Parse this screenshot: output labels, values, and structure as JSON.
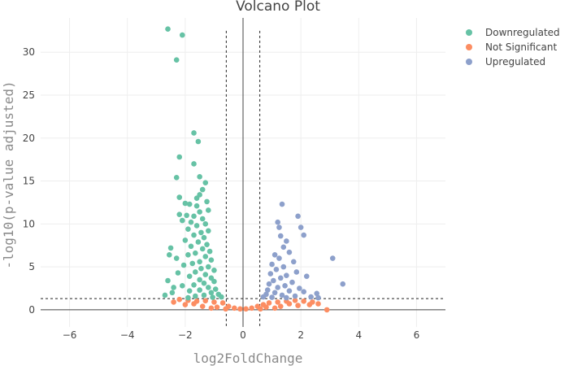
{
  "chart_data": {
    "type": "scatter",
    "title": "Volcano Plot",
    "xlabel": "log2FoldChange",
    "ylabel": "-log10(p-value adjusted)",
    "xlim": [
      -7,
      7
    ],
    "ylim": [
      -2,
      34
    ],
    "xticks": [
      -6,
      -4,
      -2,
      0,
      2,
      4,
      6
    ],
    "yticks": [
      0,
      5,
      10,
      15,
      20,
      25,
      30
    ],
    "xtick_labels": [
      "−6",
      "−4",
      "−2",
      "0",
      "2",
      "4",
      "6"
    ],
    "ytick_labels": [
      "0",
      "5",
      "10",
      "15",
      "20",
      "25",
      "30"
    ],
    "grid": true,
    "legend_position": "top-right",
    "thresholds": {
      "log2fc": [
        -0.58,
        0.58
      ],
      "neg_log10_padj": 1.3
    },
    "series": [
      {
        "name": "Downregulated",
        "color": "#66c2a5",
        "points": [
          [
            -2.6,
            32.7
          ],
          [
            -2.1,
            32.0
          ],
          [
            -2.3,
            29.1
          ],
          [
            -1.7,
            20.6
          ],
          [
            -1.55,
            19.6
          ],
          [
            -2.2,
            17.8
          ],
          [
            -1.7,
            17.0
          ],
          [
            -1.5,
            15.5
          ],
          [
            -2.3,
            15.4
          ],
          [
            -1.3,
            14.8
          ],
          [
            -1.4,
            14.0
          ],
          [
            -1.5,
            13.4
          ],
          [
            -2.2,
            13.1
          ],
          [
            -1.6,
            13.0
          ],
          [
            -1.25,
            12.6
          ],
          [
            -2.0,
            12.4
          ],
          [
            -1.85,
            12.3
          ],
          [
            -1.6,
            12.1
          ],
          [
            -1.2,
            11.6
          ],
          [
            -1.5,
            11.4
          ],
          [
            -2.2,
            11.1
          ],
          [
            -1.95,
            11.0
          ],
          [
            -1.7,
            10.9
          ],
          [
            -1.4,
            10.6
          ],
          [
            -2.1,
            10.4
          ],
          [
            -1.8,
            10.2
          ],
          [
            -1.3,
            10.0
          ],
          [
            -1.6,
            9.8
          ],
          [
            -1.9,
            9.4
          ],
          [
            -1.2,
            9.2
          ],
          [
            -1.45,
            9.0
          ],
          [
            -1.7,
            8.7
          ],
          [
            -1.35,
            8.4
          ],
          [
            -2.0,
            8.1
          ],
          [
            -1.55,
            7.9
          ],
          [
            -1.25,
            7.6
          ],
          [
            -1.8,
            7.4
          ],
          [
            -2.5,
            7.2
          ],
          [
            -1.4,
            7.1
          ],
          [
            -1.15,
            6.8
          ],
          [
            -1.65,
            6.6
          ],
          [
            -1.9,
            6.4
          ],
          [
            -2.55,
            6.4
          ],
          [
            -1.3,
            6.2
          ],
          [
            -2.3,
            6.0
          ],
          [
            -1.1,
            5.8
          ],
          [
            -1.5,
            5.6
          ],
          [
            -1.75,
            5.4
          ],
          [
            -2.05,
            5.2
          ],
          [
            -1.2,
            5.0
          ],
          [
            -1.45,
            4.8
          ],
          [
            -1.0,
            4.6
          ],
          [
            -1.65,
            4.4
          ],
          [
            -2.25,
            4.3
          ],
          [
            -1.3,
            4.1
          ],
          [
            -1.85,
            3.9
          ],
          [
            -1.1,
            3.7
          ],
          [
            -1.5,
            3.5
          ],
          [
            -2.6,
            3.4
          ],
          [
            -1.0,
            3.3
          ],
          [
            -1.35,
            3.1
          ],
          [
            -1.7,
            2.9
          ],
          [
            -2.1,
            2.8
          ],
          [
            -1.2,
            2.6
          ],
          [
            -2.4,
            2.6
          ],
          [
            -0.95,
            2.4
          ],
          [
            -1.5,
            2.3
          ],
          [
            -1.85,
            2.2
          ],
          [
            -2.45,
            2.0
          ],
          [
            -1.1,
            2.0
          ],
          [
            -0.85,
            1.8
          ],
          [
            -1.35,
            1.7
          ],
          [
            -2.7,
            1.7
          ],
          [
            -1.65,
            1.6
          ],
          [
            -0.75,
            1.5
          ],
          [
            -1.05,
            1.45
          ],
          [
            -1.9,
            1.4
          ]
        ]
      },
      {
        "name": "Not Significant",
        "color": "#fc8d62",
        "points": [
          [
            -2.2,
            1.2
          ],
          [
            -1.9,
            1.1
          ],
          [
            -1.6,
            1.0
          ],
          [
            -1.3,
            1.05
          ],
          [
            -1.0,
            0.9
          ],
          [
            -0.7,
            0.8
          ],
          [
            -0.5,
            0.4
          ],
          [
            -0.3,
            0.2
          ],
          [
            -0.1,
            0.1
          ],
          [
            0.1,
            0.1
          ],
          [
            0.3,
            0.2
          ],
          [
            0.5,
            0.4
          ],
          [
            0.7,
            0.6
          ],
          [
            0.9,
            0.8
          ],
          [
            1.2,
            0.9
          ],
          [
            1.5,
            1.0
          ],
          [
            1.8,
            1.1
          ],
          [
            2.1,
            1.0
          ],
          [
            2.4,
            0.9
          ],
          [
            2.6,
            0.7
          ],
          [
            2.9,
            0.0
          ],
          [
            -2.0,
            0.6
          ],
          [
            -1.4,
            0.4
          ],
          [
            -0.9,
            0.3
          ],
          [
            0.8,
            0.3
          ],
          [
            1.3,
            0.4
          ],
          [
            1.9,
            0.5
          ],
          [
            -2.4,
            0.9
          ],
          [
            -1.1,
            0.2
          ],
          [
            1.1,
            0.2
          ],
          [
            2.3,
            0.6
          ],
          [
            -0.6,
            0.1
          ],
          [
            0.6,
            0.1
          ],
          [
            -1.7,
            0.7
          ],
          [
            1.6,
            0.7
          ]
        ]
      },
      {
        "name": "Upregulated",
        "color": "#8da0cb",
        "points": [
          [
            1.35,
            12.3
          ],
          [
            1.9,
            10.9
          ],
          [
            1.2,
            10.2
          ],
          [
            1.25,
            9.6
          ],
          [
            2.0,
            9.6
          ],
          [
            2.1,
            8.7
          ],
          [
            1.3,
            8.6
          ],
          [
            1.5,
            8.0
          ],
          [
            1.4,
            7.3
          ],
          [
            1.6,
            6.7
          ],
          [
            1.1,
            6.4
          ],
          [
            1.25,
            6.0
          ],
          [
            3.1,
            6.0
          ],
          [
            1.75,
            5.6
          ],
          [
            1.0,
            5.3
          ],
          [
            1.4,
            5.0
          ],
          [
            1.15,
            4.7
          ],
          [
            1.85,
            4.4
          ],
          [
            0.95,
            4.2
          ],
          [
            1.5,
            4.0
          ],
          [
            2.2,
            3.9
          ],
          [
            1.3,
            3.7
          ],
          [
            1.05,
            3.4
          ],
          [
            1.7,
            3.2
          ],
          [
            3.45,
            3.0
          ],
          [
            0.9,
            3.0
          ],
          [
            1.45,
            2.8
          ],
          [
            1.2,
            2.6
          ],
          [
            1.95,
            2.5
          ],
          [
            0.85,
            2.3
          ],
          [
            1.6,
            2.2
          ],
          [
            2.1,
            2.1
          ],
          [
            1.1,
            2.0
          ],
          [
            2.55,
            1.9
          ],
          [
            0.8,
            1.8
          ],
          [
            1.35,
            1.7
          ],
          [
            1.8,
            1.6
          ],
          [
            2.35,
            1.5
          ],
          [
            0.7,
            1.5
          ],
          [
            1.0,
            1.45
          ],
          [
            2.6,
            1.4
          ],
          [
            1.5,
            1.4
          ]
        ]
      }
    ]
  }
}
